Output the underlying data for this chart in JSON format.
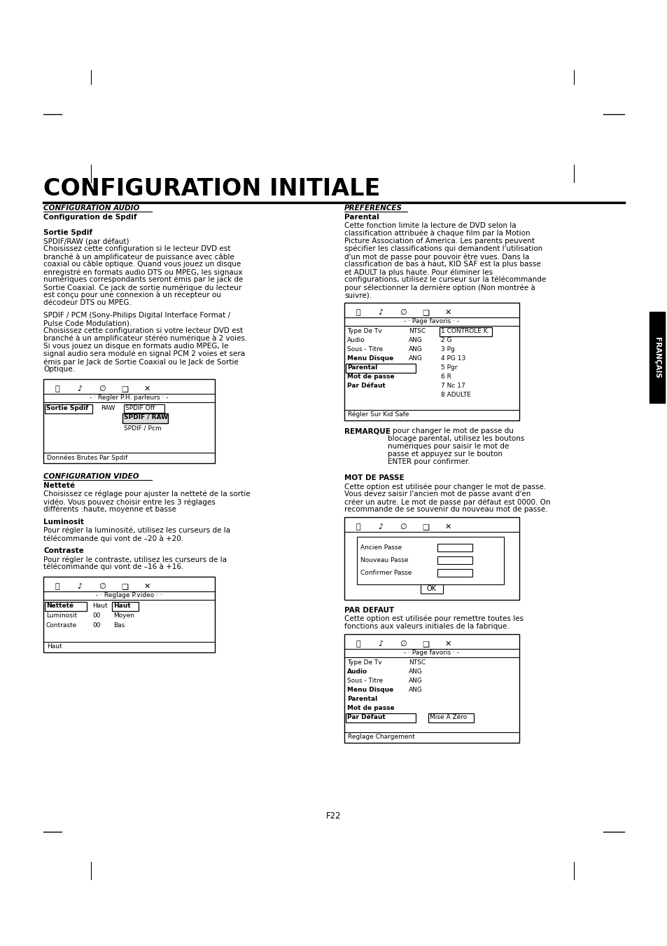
{
  "bg_color": "#ffffff",
  "title": "CONFIGURATION INITIALE",
  "page_number": "F22",
  "left_col": {
    "section1_title": "CONFIGURATION AUDIO",
    "section1_sub": "Configuration de Spdif",
    "sortie_spdif_title": "Sortie Spdif",
    "sortie_spdif_text1": "SPDIF/RAW (par défaut)",
    "sortie_spdif_body1": [
      "Choisissez cette configuration si le lecteur DVD est",
      "branché à un amplificateur de puissance avec câble",
      "coaxial ou câble optique. Quand vous jouez un disque",
      "enregistré en formats audio DTS ou MPEG, les signaux",
      "numériques correspondants seront émis par le jack de",
      "Sortie Coaxial. Ce jack de sortie numérique du lecteur",
      "est conçu pour une connexion à un récepteur ou",
      "décodeur DTS ou MPEG."
    ],
    "sortie_spdif_text3a": "SPDIF / PCM (Sony-Philips Digital Interface Format /",
    "sortie_spdif_text3b": "Pulse Code Modulation).",
    "sortie_spdif_body2": [
      "Choisissez cette configuration si votre lecteur DVD est",
      "branché à un amplificateur stéréo numérique à 2 voies.",
      "Si vous jouez un disque en formats audio MPEG, le",
      "signal audio sera modulé en signal PCM 2 voies et sera",
      "émis par le Jack de Sortie Coaxial ou le Jack de Sortie",
      "Optique."
    ],
    "box1_title": "- · Regler P.H. parleurs · -",
    "box1_row1_label": "Sortie Spdif",
    "box1_row1_val1": "RAW",
    "box1_row1_val2": "SPDIF Off",
    "box1_row1_val3": "SPDIF / RAW",
    "box1_row1_val4": "SPDIF / Pcm",
    "box1_footer": "Données Brutes Par Spdif",
    "section2_title": "CONFIGURATION VIDEO",
    "nettete_title": "Netteté",
    "nettete_lines": [
      "Choisissez ce réglage pour ajuster la netteté de la sortie",
      "vidéo. Vous pouvez choisir entre les 3 réglages",
      "différents :haute, moyenne et basse"
    ],
    "luminosit_title": "Luminosit",
    "luminosit_lines": [
      "Pour régler la luminosité, utilisez les curseurs de la",
      "télécommande qui vont de –20 à +20."
    ],
    "contraste_title": "Contraste",
    "contraste_lines": [
      "Pour régler le contraste, utilisez les curseurs de la",
      "télécommande qui vont de –16 à +16."
    ],
    "box2_title": "- · Reglage P.video · ·",
    "box2_row1_label": "Netteté",
    "box2_row1_val1": "Haut",
    "box2_row1_val2": "Haut",
    "box2_row2_label": "Luminosit",
    "box2_row2_val1": "00",
    "box2_row2_val2": "Moyen",
    "box2_row3_label": "Contraste",
    "box2_row3_val1": "00",
    "box2_row3_val2": "Bas",
    "box2_footer": "Haut"
  },
  "right_col": {
    "section1_title": "PRÉFÉRENCES",
    "parental_title": "Parental",
    "parental_lines": [
      "Cette fonction limite la lecture de DVD selon la",
      "classification attribuée à chaque film par la Motion",
      "Picture Association of America. Les parents peuvent",
      "spécifier les classifications qui demandent l'utilisation",
      "d'un mot de passe pour pouvoir être vues. Dans la",
      "classification de bas à haut, KID SAF est la plus basse",
      "et ADULT la plus haute. Pour éliminer les",
      "configurations, utilisez le curseur sur la télécommande",
      "pour sélectionner la dernière option (Non montrée à",
      "suivre)."
    ],
    "box1_title": "- · Page favoris · -",
    "box1_rows": [
      [
        "Type De Tv",
        "NTSC",
        "1 CONTROLE K."
      ],
      [
        "Audio",
        "ANG",
        "2 G"
      ],
      [
        "Sous - Titre",
        "ANG",
        "3 Pg"
      ],
      [
        "Menu Disque",
        "ANG",
        "4 PG 13"
      ],
      [
        "Parental",
        "",
        "5 Pgr"
      ],
      [
        "Mot de passe",
        "",
        "6 R"
      ],
      [
        "Par Défaut",
        "",
        "7 Nc 17"
      ],
      [
        "",
        "",
        "8 ADULTE"
      ]
    ],
    "box1_footer": "Régler Sur Kid Safe",
    "remarque_label": "REMARQUE",
    "remarque_lines": [
      "- pour changer le mot de passe du",
      "blocage parental, utilisez les boutons",
      "numériques pour saisir le mot de",
      "passe et appuyez sur le bouton",
      "ENTER pour confirmer."
    ],
    "mot_de_passe_title": "MOT DE PASSE",
    "mot_de_passe_lines": [
      "Cette option est utilisée pour changer le mot de passe.",
      "Vous devez saisir l'ancien mot de passe avant d'en",
      "créer un autre. Le mot de passe par défaut est 0000. On",
      "recommande de se souvenir du nouveau mot de passe."
    ],
    "box2_row1": "Ancien Passe",
    "box2_row2": "Nouveau Passe",
    "box2_row3": "Confirmer Passe",
    "box2_ok": "OK",
    "par_defaut_title": "PAR DEFAUT",
    "par_defaut_lines": [
      "Cette option est utilisée pour remettre toutes les",
      "fonctions aux valeurs initiales de la fabrique."
    ],
    "box3_title": "- · Page favoris · -",
    "box3_rows": [
      [
        "Type De Tv",
        "NTSC"
      ],
      [
        "Audio",
        "ANG"
      ],
      [
        "Sous - Titre",
        "ANG"
      ],
      [
        "Menu Disque",
        "ANG"
      ],
      [
        "Parental",
        ""
      ],
      [
        "Mot de passe",
        ""
      ],
      [
        "Par Défaut",
        "Mise A Zéro"
      ]
    ],
    "box3_footer": "Reglage Chargement",
    "francais_tab": "FRANÇAIS"
  }
}
